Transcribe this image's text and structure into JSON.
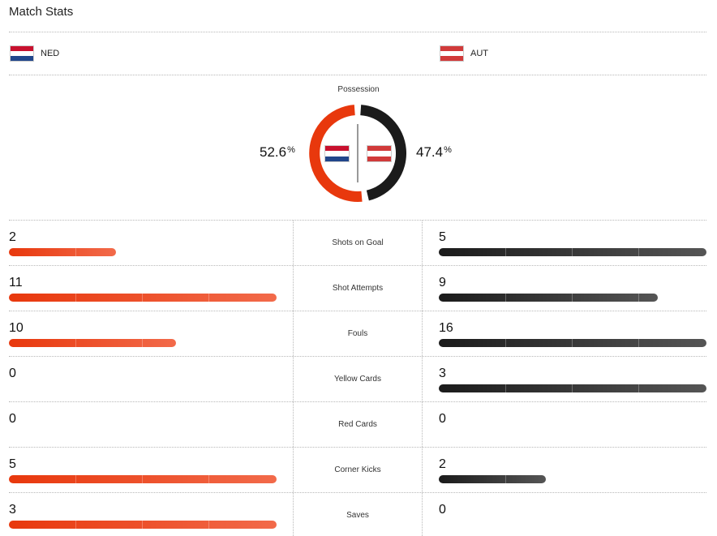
{
  "title": "Match Stats",
  "home": {
    "code": "NED",
    "flag_icon": "netherlands-flag-icon"
  },
  "away": {
    "code": "AUT",
    "flag_icon": "austria-flag-icon"
  },
  "colors": {
    "home": "#E8380D",
    "away": "#1B1B1B"
  },
  "possession": {
    "label": "Possession",
    "home_value": "52.6",
    "away_value": "47.4",
    "unit": "%",
    "home_fraction": 0.526
  },
  "stats": [
    {
      "label": "Shots on Goal",
      "home": "2",
      "away": "5",
      "home_fraction": 0.4,
      "away_fraction": 1.0
    },
    {
      "label": "Shot Attempts",
      "home": "11",
      "away": "9",
      "home_fraction": 1.0,
      "away_fraction": 0.818
    },
    {
      "label": "Fouls",
      "home": "10",
      "away": "16",
      "home_fraction": 0.625,
      "away_fraction": 1.0
    },
    {
      "label": "Yellow Cards",
      "home": "0",
      "away": "3",
      "home_fraction": 0,
      "away_fraction": 1.0
    },
    {
      "label": "Red Cards",
      "home": "0",
      "away": "0",
      "home_fraction": 0,
      "away_fraction": 0
    },
    {
      "label": "Corner Kicks",
      "home": "5",
      "away": "2",
      "home_fraction": 1.0,
      "away_fraction": 0.4
    },
    {
      "label": "Saves",
      "home": "3",
      "away": "0",
      "home_fraction": 1.0,
      "away_fraction": 0
    }
  ]
}
